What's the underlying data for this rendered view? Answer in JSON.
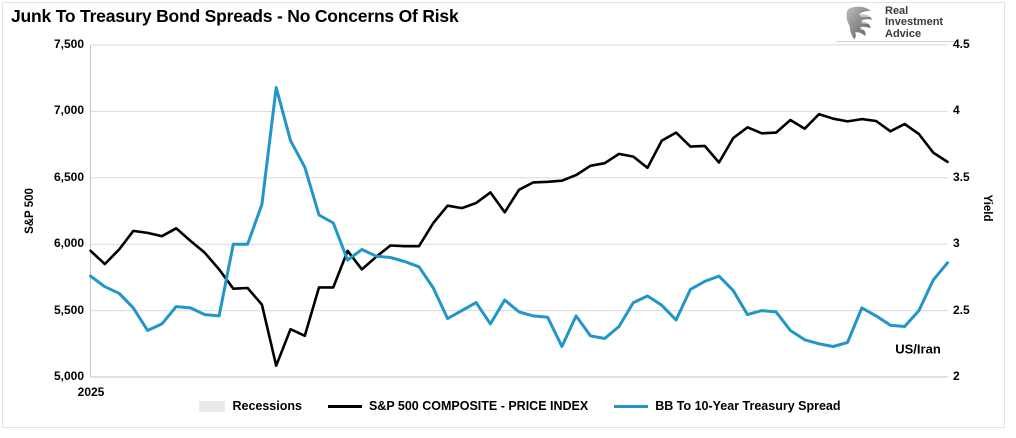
{
  "header": {
    "logo": {
      "icon": "eagle-icon",
      "lines": [
        "Real",
        "Investment",
        "Advice"
      ]
    }
  },
  "chart_data": {
    "type": "line",
    "title": "Junk To Treasury Bond Spreads - No Concerns Of Risk",
    "x_axis": {
      "tick_labels": [
        "2025"
      ]
    },
    "y_axis_left": {
      "label": "S&P 500",
      "min": 5000,
      "max": 7500,
      "tick_labels": [
        "5,000",
        "5,500",
        "6,000",
        "6,500",
        "7,000",
        "7,500"
      ]
    },
    "y_axis_right": {
      "label": "Yield",
      "min": 2,
      "max": 4.5,
      "tick_labels": [
        "2",
        "2.5",
        "3",
        "3.5",
        "4",
        "4.5"
      ]
    },
    "grid": true,
    "colors": {
      "sp500": "#000000",
      "spread": "#2196c8",
      "recession": "#e9e9e9",
      "gridline": "#d9d9d9",
      "axisline": "#c4c4c4"
    },
    "legend": {
      "position": "bottom",
      "entries": [
        {
          "label": "Recessions",
          "type": "area",
          "color": "#e9e9e9"
        },
        {
          "label": "S&P 500 COMPOSITE - PRICE INDEX",
          "type": "line",
          "color": "#000000"
        },
        {
          "label": "BB To 10-Year Treasury Spread",
          "type": "line",
          "color": "#2196c8"
        }
      ]
    },
    "annotations": [
      {
        "text": "US/Iran",
        "axis": "right",
        "x_fraction": 0.965,
        "y_value": 2.21
      }
    ],
    "series": [
      {
        "name": "S&P 500 COMPOSITE - PRICE INDEX",
        "axis": "left",
        "color": "#000000",
        "values": [
          5950,
          5850,
          5960,
          6100,
          6085,
          6060,
          6120,
          6025,
          5935,
          5810,
          5665,
          5670,
          5545,
          5085,
          5360,
          5310,
          5675,
          5675,
          5950,
          5810,
          5905,
          5990,
          5985,
          5985,
          6160,
          6290,
          6272,
          6310,
          6390,
          6240,
          6410,
          6465,
          6470,
          6478,
          6520,
          6590,
          6610,
          6680,
          6660,
          6575,
          6780,
          6840,
          6735,
          6740,
          6615,
          6800,
          6880,
          6835,
          6840,
          6935,
          6870,
          6980,
          6945,
          6925,
          6942,
          6928,
          6850,
          6905,
          6830,
          6690,
          6620
        ]
      },
      {
        "name": "BB To 10-Year Treasury Spread",
        "axis": "right",
        "color": "#2196c8",
        "values": [
          2.76,
          2.68,
          2.63,
          2.52,
          2.35,
          2.4,
          2.53,
          2.52,
          2.47,
          2.46,
          3.0,
          3.0,
          3.3,
          4.18,
          3.78,
          3.58,
          3.22,
          3.16,
          2.88,
          2.96,
          2.91,
          2.9,
          2.87,
          2.83,
          2.67,
          2.44,
          2.5,
          2.56,
          2.4,
          2.58,
          2.49,
          2.46,
          2.45,
          2.23,
          2.46,
          2.31,
          2.29,
          2.38,
          2.56,
          2.61,
          2.54,
          2.43,
          2.66,
          2.72,
          2.76,
          2.65,
          2.47,
          2.5,
          2.49,
          2.35,
          2.28,
          2.25,
          2.23,
          2.26,
          2.52,
          2.46,
          2.39,
          2.38,
          2.5,
          2.73,
          2.86
        ]
      }
    ]
  }
}
